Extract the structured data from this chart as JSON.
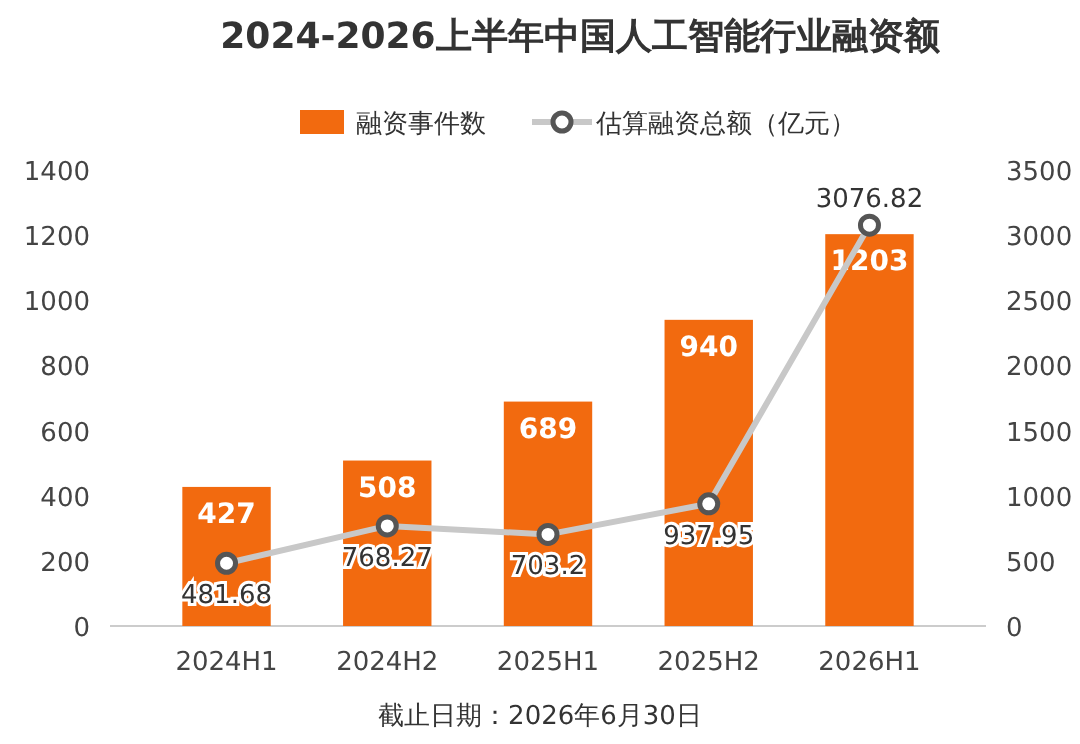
{
  "chart_data": {
    "type": "bar",
    "title": "2024-2026上半年中国人工智能行业融资额",
    "categories": [
      "2024H1",
      "2024H2",
      "2025H1",
      "2025H2",
      "2026H1"
    ],
    "series": [
      {
        "name": "融资事件数",
        "color": "#f26a0f",
        "values": [
          427,
          508,
          689,
          940,
          1203
        ]
      },
      {
        "name": "估算融资总额（亿元）",
        "type": "line",
        "axis": "y2",
        "color": "#c8c8c8",
        "marker": "circle",
        "values": [
          481.68,
          768.27,
          703.2,
          937.95,
          3076.82
        ]
      }
    ],
    "ylim": [
      0,
      1400
    ],
    "yticks": [
      0,
      200,
      400,
      600,
      800,
      1000,
      1200,
      1400
    ],
    "y2lim": [
      0,
      3500
    ],
    "y2ticks": [
      0,
      500,
      1000,
      1500,
      2000,
      2500,
      3000,
      3500
    ],
    "legend": "top",
    "data_labels": true,
    "annotations": [
      "截止日期：2026年6月30日"
    ]
  }
}
